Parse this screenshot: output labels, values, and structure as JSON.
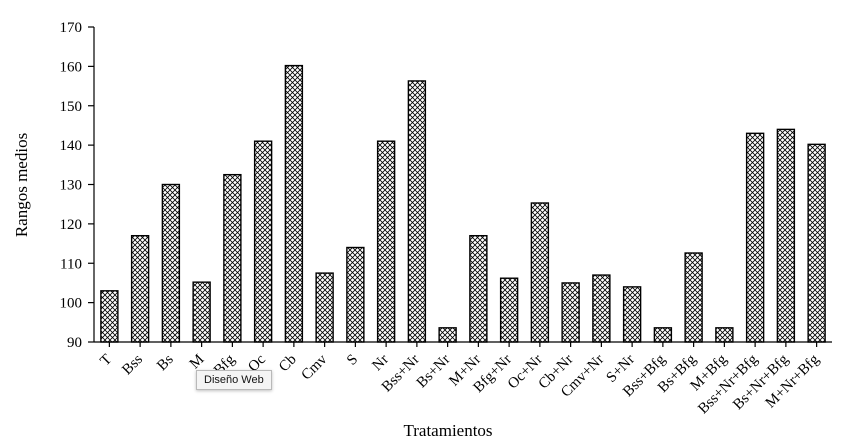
{
  "chart_data": {
    "type": "bar",
    "title": "",
    "xlabel": "Tratamientos",
    "ylabel": "Rangos medios",
    "ylim": [
      90,
      170
    ],
    "yticks": [
      90,
      100,
      110,
      120,
      130,
      140,
      150,
      160,
      170
    ],
    "grid": false,
    "categories": [
      "T",
      "Bss",
      "Bs",
      "M",
      "Bfg",
      "Oc",
      "Cb",
      "Cmv",
      "S",
      "Nr",
      "Bss+Nr",
      "Bs+Nr",
      "M+Nr",
      "Bfg+Nr",
      "Oc+Nr",
      "Cb+Nr",
      "Cmv+Nr",
      "S+Nr",
      "Bss+Bfg",
      "Bs+Bfg",
      "M+Bfg",
      "Bss+Nr+Bfg",
      "Bs+Nr+Bfg",
      "M+Nr+Bfg"
    ],
    "values": [
      103,
      117,
      130,
      105.2,
      132.5,
      141,
      160.2,
      107.5,
      114,
      141,
      156.3,
      93.6,
      117,
      106.2,
      125.3,
      105,
      107,
      104,
      93.6,
      112.6,
      93.6,
      143,
      144,
      140.2
    ]
  },
  "tooltip": {
    "text": "Diseño Web"
  }
}
